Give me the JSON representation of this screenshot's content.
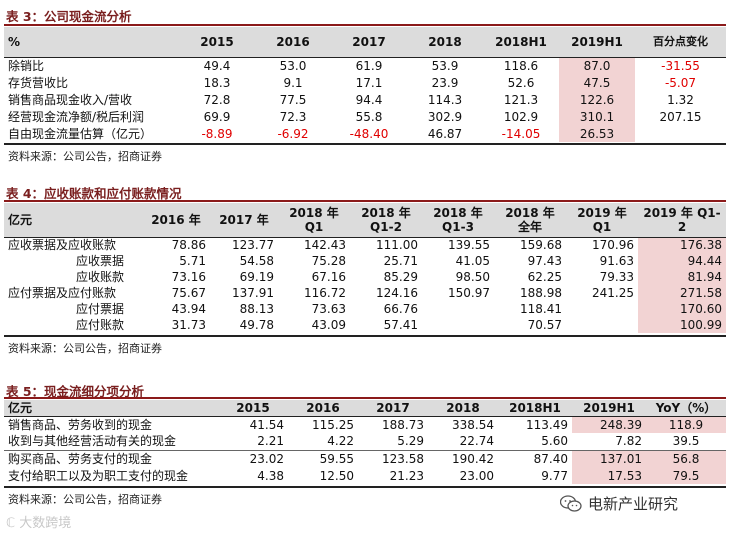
{
  "t3": {
    "title": "表 3：公司现金流分析",
    "headers": [
      "%",
      "2015",
      "2016",
      "2017",
      "2018",
      "2018H1",
      "2019H1",
      "百分点变化"
    ],
    "rows": [
      [
        "除销比",
        "49.4",
        "53.0",
        "61.9",
        "53.9",
        "118.6",
        "87.0",
        "-31.55"
      ],
      [
        "存货营收比",
        "18.3",
        "9.1",
        "17.1",
        "23.9",
        "52.6",
        "47.5",
        "-5.07"
      ],
      [
        "销售商品现金收入/营收",
        "72.8",
        "77.5",
        "94.4",
        "114.3",
        "121.3",
        "122.6",
        "1.32"
      ],
      [
        "经营现金流净额/税后利润",
        "69.9",
        "72.3",
        "55.8",
        "302.9",
        "102.9",
        "310.1",
        "207.15"
      ],
      [
        "自由现金流量估算（亿元）",
        "-8.89",
        "-6.92",
        "-48.40",
        "46.87",
        "-14.05",
        "26.53",
        ""
      ]
    ],
    "source": "资料来源：公司公告，招商证券"
  },
  "t4": {
    "title": "表 4：应收账款和应付账款情况",
    "headers": [
      "亿元",
      "2016 年",
      "2017 年",
      "2018 年 Q1",
      "2018 年 Q1-2",
      "2018 年 Q1-3",
      "2018 年 全年",
      "2019 年 Q1",
      "2019 年 Q1-2"
    ],
    "rows": [
      [
        "应收票据及应收账款",
        "78.86",
        "123.77",
        "142.43",
        "111.00",
        "139.55",
        "159.68",
        "170.96",
        "176.38"
      ],
      [
        "应收票据",
        "5.71",
        "54.58",
        "75.28",
        "25.71",
        "41.05",
        "97.43",
        "91.63",
        "94.44"
      ],
      [
        "应收账款",
        "73.16",
        "69.19",
        "67.16",
        "85.29",
        "98.50",
        "62.25",
        "79.33",
        "81.94"
      ],
      [
        "应付票据及应付账款",
        "75.67",
        "137.91",
        "116.72",
        "124.16",
        "150.97",
        "188.98",
        "241.25",
        "271.58"
      ],
      [
        "应付票据",
        "43.94",
        "88.13",
        "73.63",
        "66.76",
        "",
        "118.41",
        "",
        "170.60"
      ],
      [
        "应付账款",
        "31.73",
        "49.78",
        "43.09",
        "57.41",
        "",
        "70.57",
        "",
        "100.99"
      ]
    ],
    "source": "资料来源：公司公告，招商证券"
  },
  "t5": {
    "title": "表 5：现金流细分项分析",
    "headers": [
      "亿元",
      "2015",
      "2016",
      "2017",
      "2018",
      "2018H1",
      "2019H1",
      "YoY（%）"
    ],
    "rows": [
      [
        "销售商品、劳务收到的现金",
        "41.54",
        "115.25",
        "188.73",
        "338.54",
        "113.49",
        "248.39",
        "118.9"
      ],
      [
        "收到与其他经营活动有关的现金",
        "2.21",
        "4.22",
        "5.29",
        "22.74",
        "5.60",
        "7.82",
        "39.5"
      ],
      [
        "购买商品、劳务支付的现金",
        "23.02",
        "59.55",
        "123.58",
        "190.42",
        "87.40",
        "137.01",
        "56.8"
      ],
      [
        "支付给职工以及为职工支付的现金",
        "4.38",
        "12.50",
        "21.23",
        "23.00",
        "9.77",
        "17.53",
        "79.5"
      ]
    ],
    "source": "资料来源：公司公告，招商证券"
  },
  "watermark_left": "大数跨境",
  "watermark_right": "电新产业研究",
  "colors": {
    "accent": "#8b1a1a",
    "highlight": "#f2d3d3",
    "negative": "#e00000"
  }
}
